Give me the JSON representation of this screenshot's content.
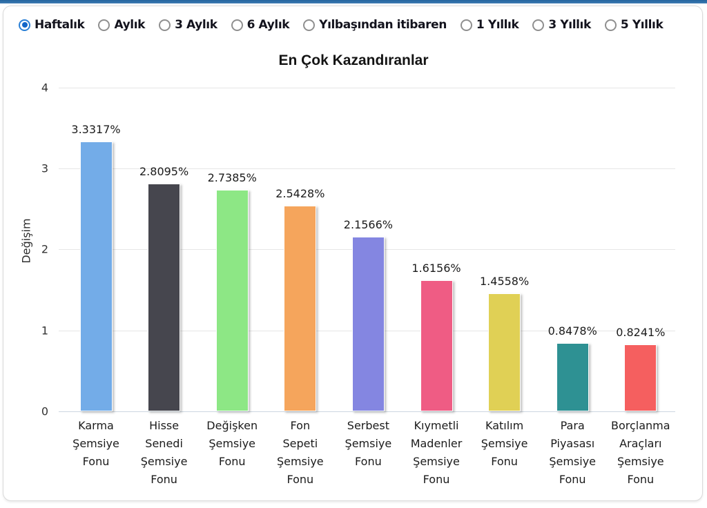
{
  "topbar": {
    "color": "#2e6da8"
  },
  "period_selector": {
    "accent_color": "#1b72c8",
    "options": [
      {
        "label": "Haftalık",
        "selected": true
      },
      {
        "label": "Aylık",
        "selected": false
      },
      {
        "label": "3 Aylık",
        "selected": false
      },
      {
        "label": "6 Aylık",
        "selected": false
      },
      {
        "label": "Yılbaşından itibaren",
        "selected": false
      },
      {
        "label": "1 Yıllık",
        "selected": false
      },
      {
        "label": "3 Yıllık",
        "selected": false
      },
      {
        "label": "5 Yıllık",
        "selected": false
      }
    ]
  },
  "chart_data": {
    "type": "bar",
    "title": "En Çok Kazandıranlar",
    "xlabel": "",
    "ylabel": "Değişim",
    "ylim": [
      0,
      4
    ],
    "yticks": [
      0,
      1,
      2,
      3,
      4
    ],
    "grid": true,
    "legend": false,
    "categories": [
      "Karma Şemsiye Fonu",
      "Hisse Senedi Şemsiye Fonu",
      "Değişken Şemsiye Fonu",
      "Fon Sepeti Şemsiye Fonu",
      "Serbest Şemsiye Fonu",
      "Kıymetli Madenler Şemsiye Fonu",
      "Katılım Şemsiye Fonu",
      "Para Piyasası Şemsiye Fonu",
      "Borçlanma Araçları Şemsiye Fonu"
    ],
    "values": [
      3.3317,
      2.8095,
      2.7385,
      2.5428,
      2.1566,
      1.6156,
      1.4558,
      0.8478,
      0.8241
    ],
    "value_labels": [
      "3.3317%",
      "2.8095%",
      "2.7385%",
      "2.5428%",
      "2.1566%",
      "1.6156%",
      "1.4558%",
      "0.8478%",
      "0.8241%"
    ],
    "bar_colors": [
      "#73ACE8",
      "#46464E",
      "#8DE785",
      "#F5A55C",
      "#8486E1",
      "#EF5C84",
      "#E0D055",
      "#2E9193",
      "#F55F5F"
    ]
  }
}
